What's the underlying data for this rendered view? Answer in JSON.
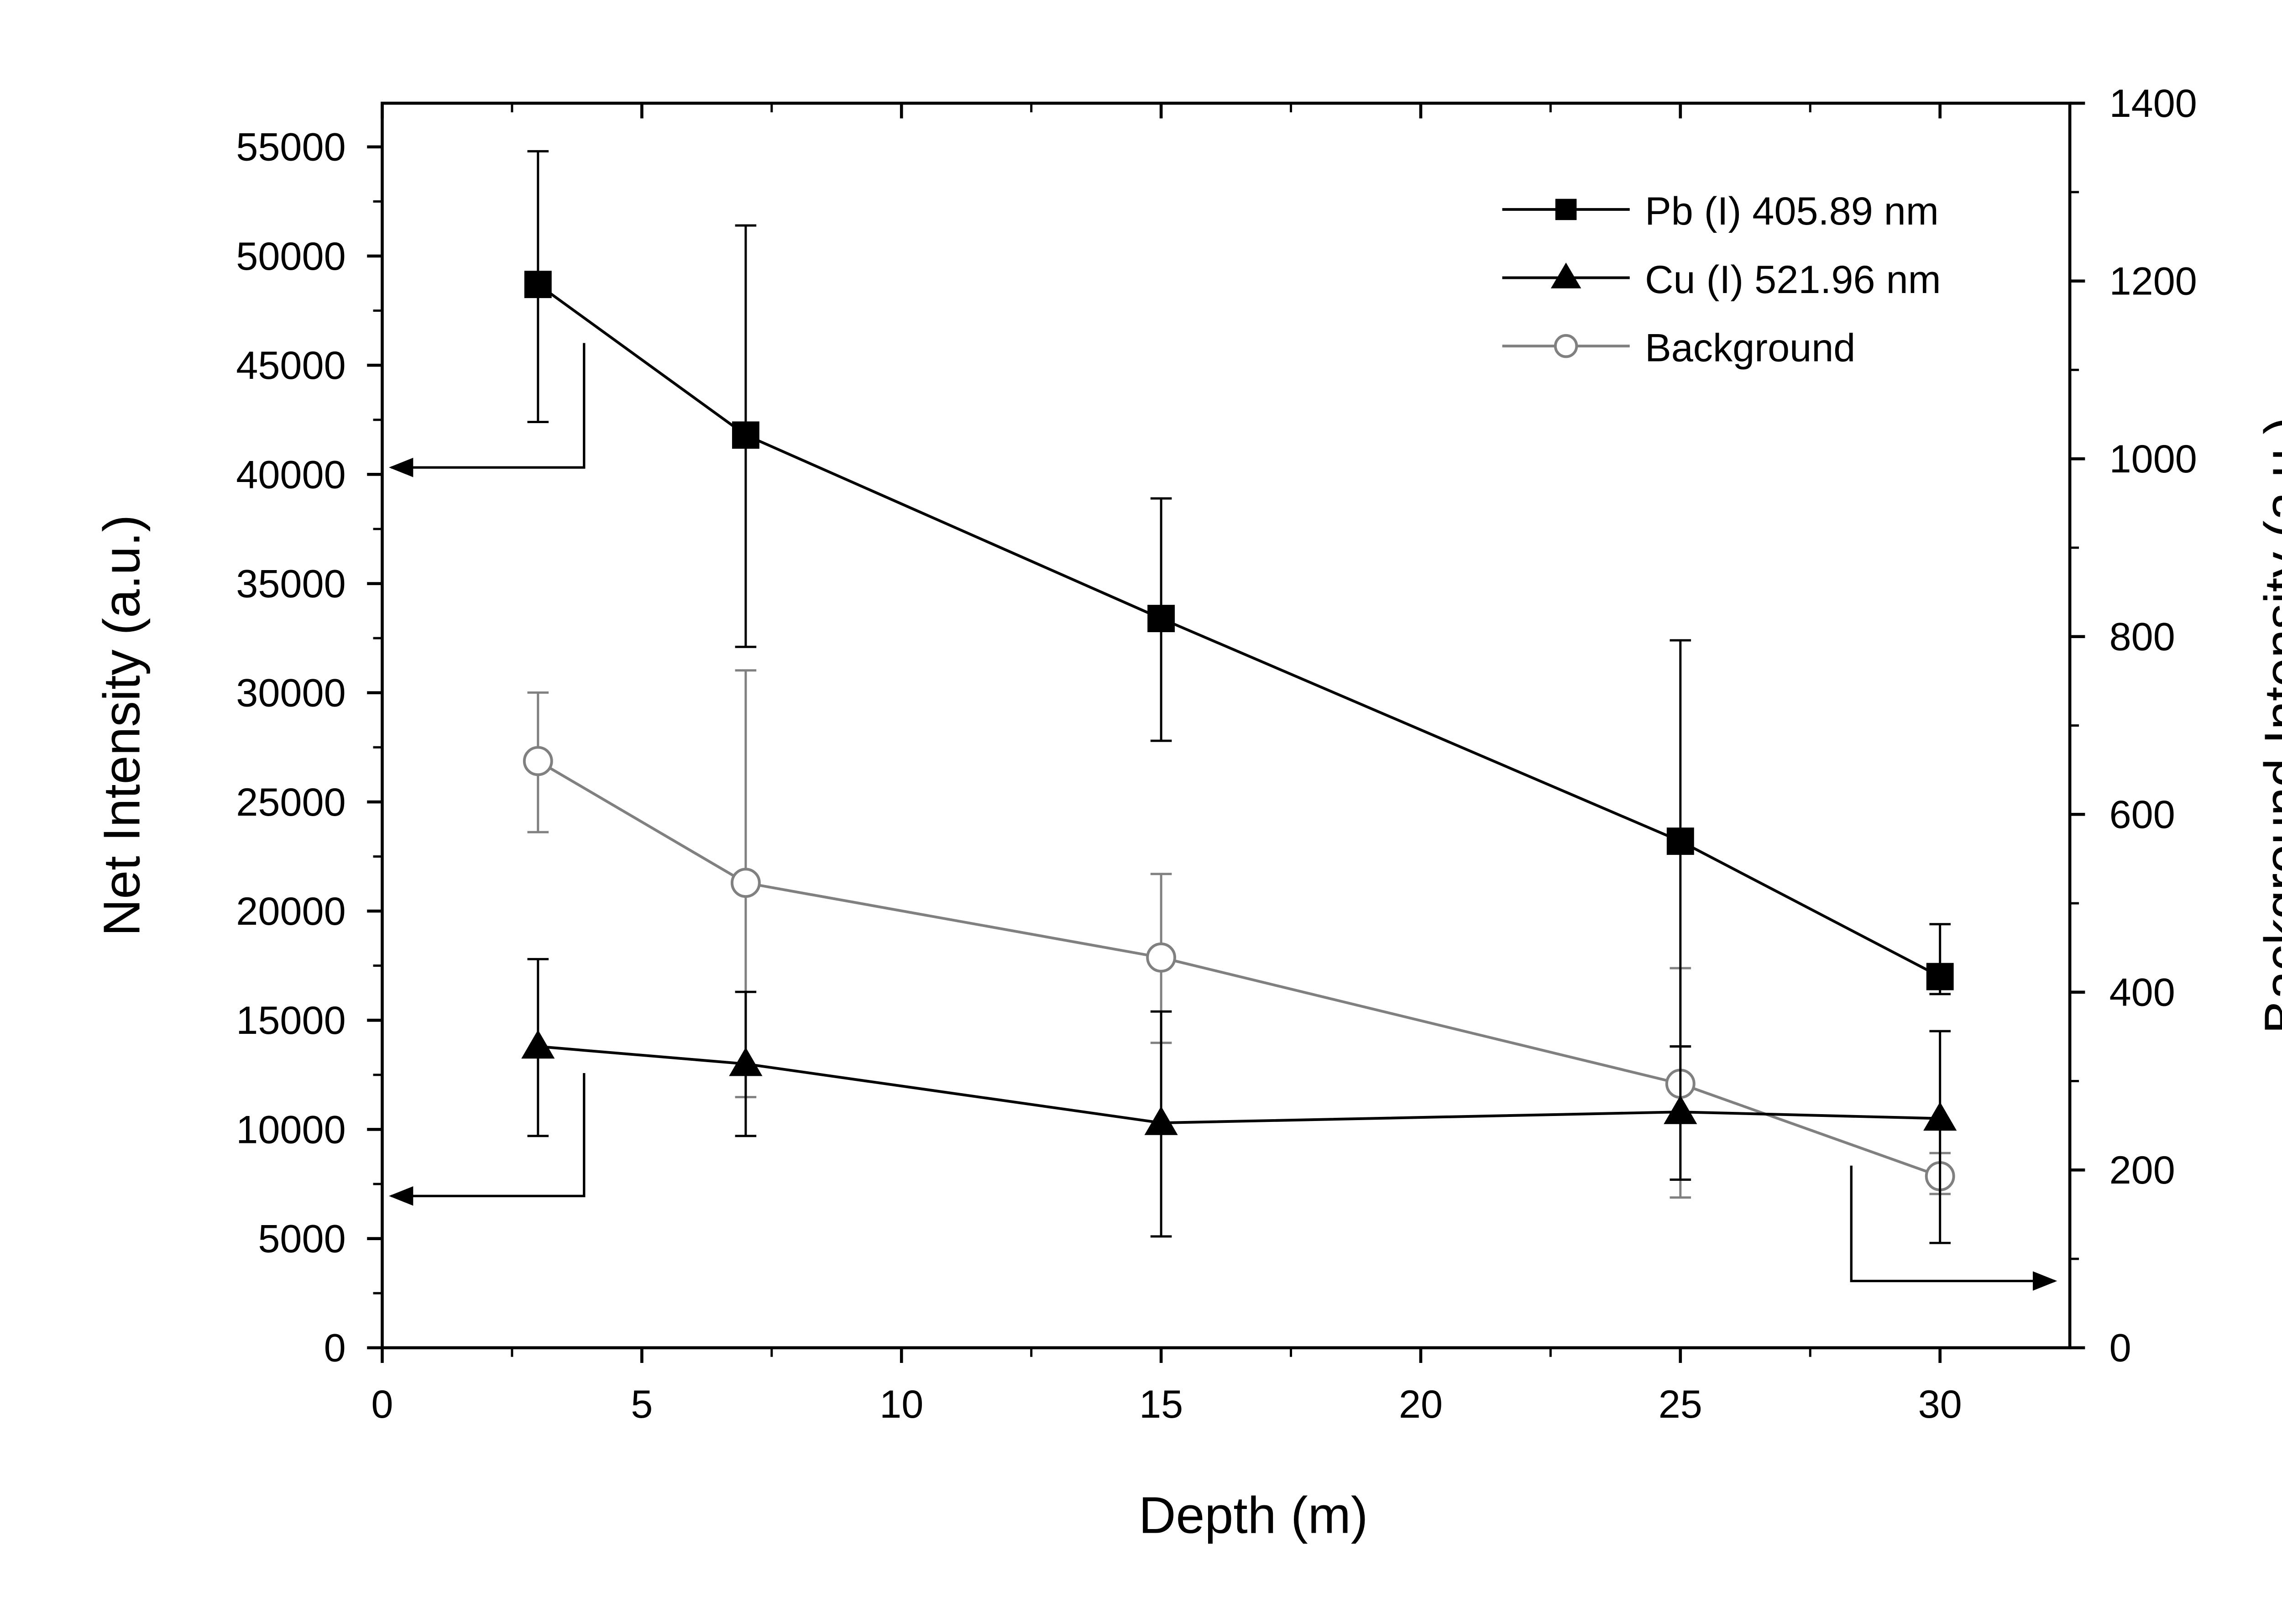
{
  "chart_data": {
    "type": "line",
    "xlabel": "Depth (m)",
    "ylabel": "Net Intensity (a.u.)",
    "y2label": "Background Intensity (a.u.)",
    "xlim": [
      0,
      32.5
    ],
    "ylim": [
      0,
      57000
    ],
    "y2lim": [
      0,
      1400
    ],
    "xticks": [
      "0",
      "5",
      "10",
      "15",
      "20",
      "25",
      "30"
    ],
    "yticks": [
      "0",
      "5000",
      "10000",
      "15000",
      "20000",
      "25000",
      "30000",
      "35000",
      "40000",
      "45000",
      "50000",
      "55000"
    ],
    "y2ticks": [
      "0",
      "200",
      "400",
      "600",
      "800",
      "1000",
      "1200",
      "1400"
    ],
    "legend_position": "top-right",
    "series": [
      {
        "name": "Pb (I) 405.89 nm",
        "axis": "left",
        "marker": "square",
        "color": "#000000",
        "x": [
          3,
          7,
          15,
          25,
          30
        ],
        "y": [
          48700,
          41800,
          33400,
          23200,
          17000
        ],
        "err_low": [
          42400,
          32100,
          27800,
          13800,
          16200
        ],
        "err_high": [
          54800,
          51400,
          38900,
          32400,
          19400
        ]
      },
      {
        "name": "Cu (I) 521.96 nm",
        "axis": "left",
        "marker": "triangle",
        "color": "#000000",
        "x": [
          3,
          7,
          15,
          25,
          30
        ],
        "y": [
          13800,
          13000,
          10300,
          10800,
          10500
        ],
        "err_low": [
          9700,
          9700,
          5100,
          7700,
          4800
        ],
        "err_high": [
          17800,
          16300,
          15400,
          13800,
          14500
        ]
      },
      {
        "name": "Background",
        "axis": "right",
        "marker": "open-circle",
        "color": "#808080",
        "x": [
          3,
          7,
          15,
          25,
          30
        ],
        "y": [
          660,
          523,
          439,
          297,
          193
        ],
        "err_low": [
          580,
          282,
          343,
          169,
          173
        ],
        "err_high": [
          737,
          762,
          533,
          427,
          219
        ]
      }
    ]
  }
}
